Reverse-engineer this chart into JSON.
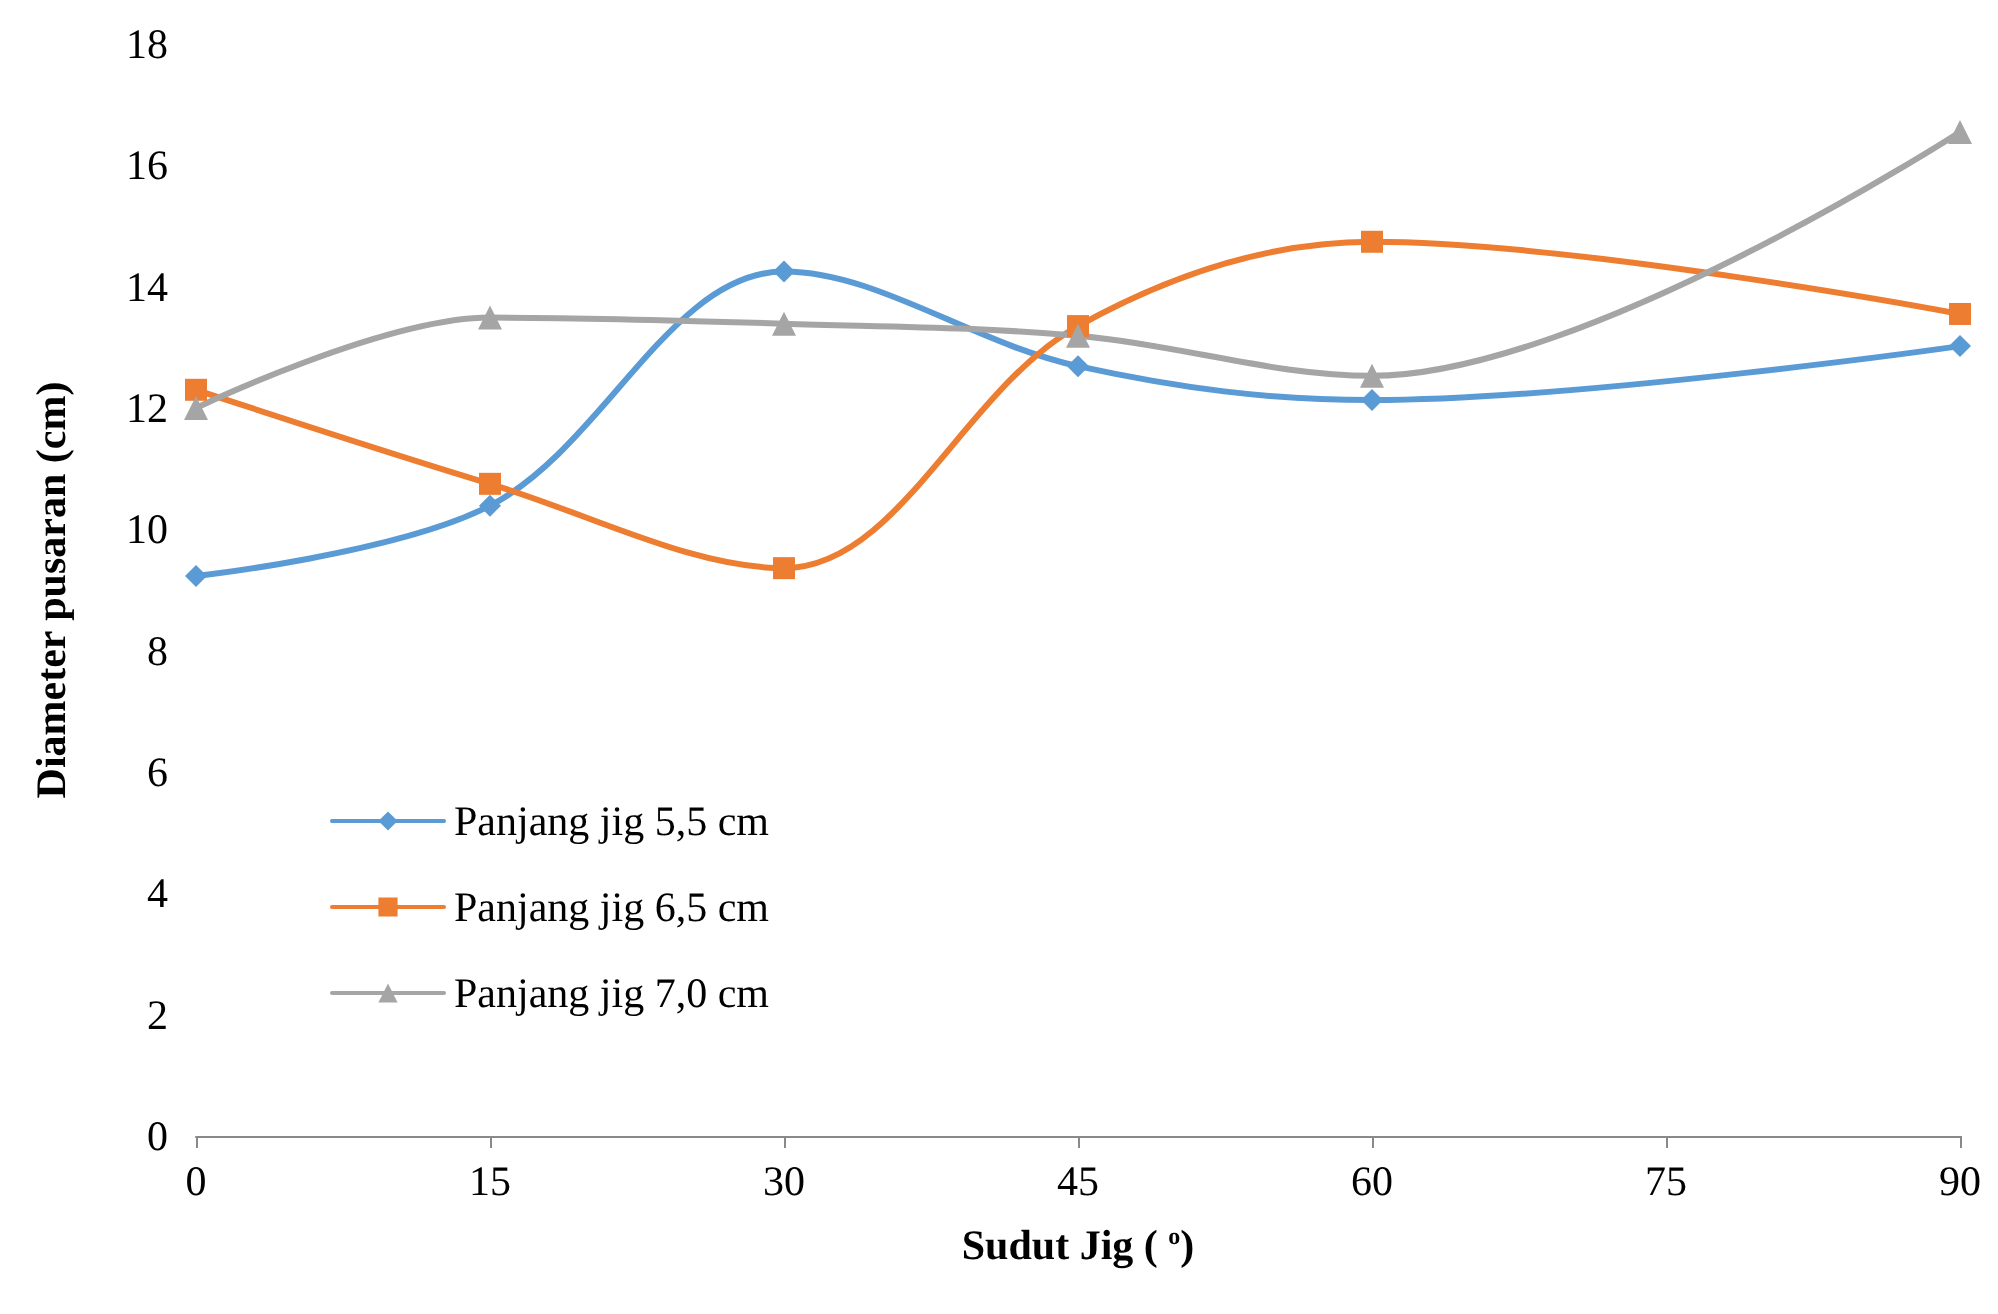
{
  "chart_data": {
    "type": "line",
    "xlabel": "Sudut Jig ( $^{o}$)",
    "ylabel": "Diameter pusaran (cm)",
    "x": [
      0,
      15,
      30,
      45,
      60,
      90
    ],
    "series": [
      {
        "name": "Panjang jig 5,5 cm",
        "color": "#5b9bd5",
        "marker": "diamond",
        "values": [
          9.23,
          10.39,
          14.25,
          12.69,
          12.13,
          13.02
        ]
      },
      {
        "name": "Panjang jig 6,5 cm",
        "color": "#ed7d31",
        "marker": "square",
        "values": [
          12.3,
          10.75,
          9.36,
          13.35,
          14.74,
          13.55
        ]
      },
      {
        "name": "Panjang jig 7,0 cm",
        "color": "#a5a5a5",
        "marker": "triangle",
        "values": [
          12.0,
          13.49,
          13.39,
          13.19,
          12.53,
          16.55
        ]
      }
    ],
    "xlim": [
      0,
      90
    ],
    "xticks": [
      0,
      15,
      30,
      45,
      60,
      75,
      90
    ],
    "ylim": [
      0,
      18
    ],
    "yticks": [
      0,
      2,
      4,
      6,
      8,
      10,
      12,
      14,
      16,
      18
    ],
    "grid": false,
    "legend": "bottom left",
    "line_style": "solid"
  }
}
